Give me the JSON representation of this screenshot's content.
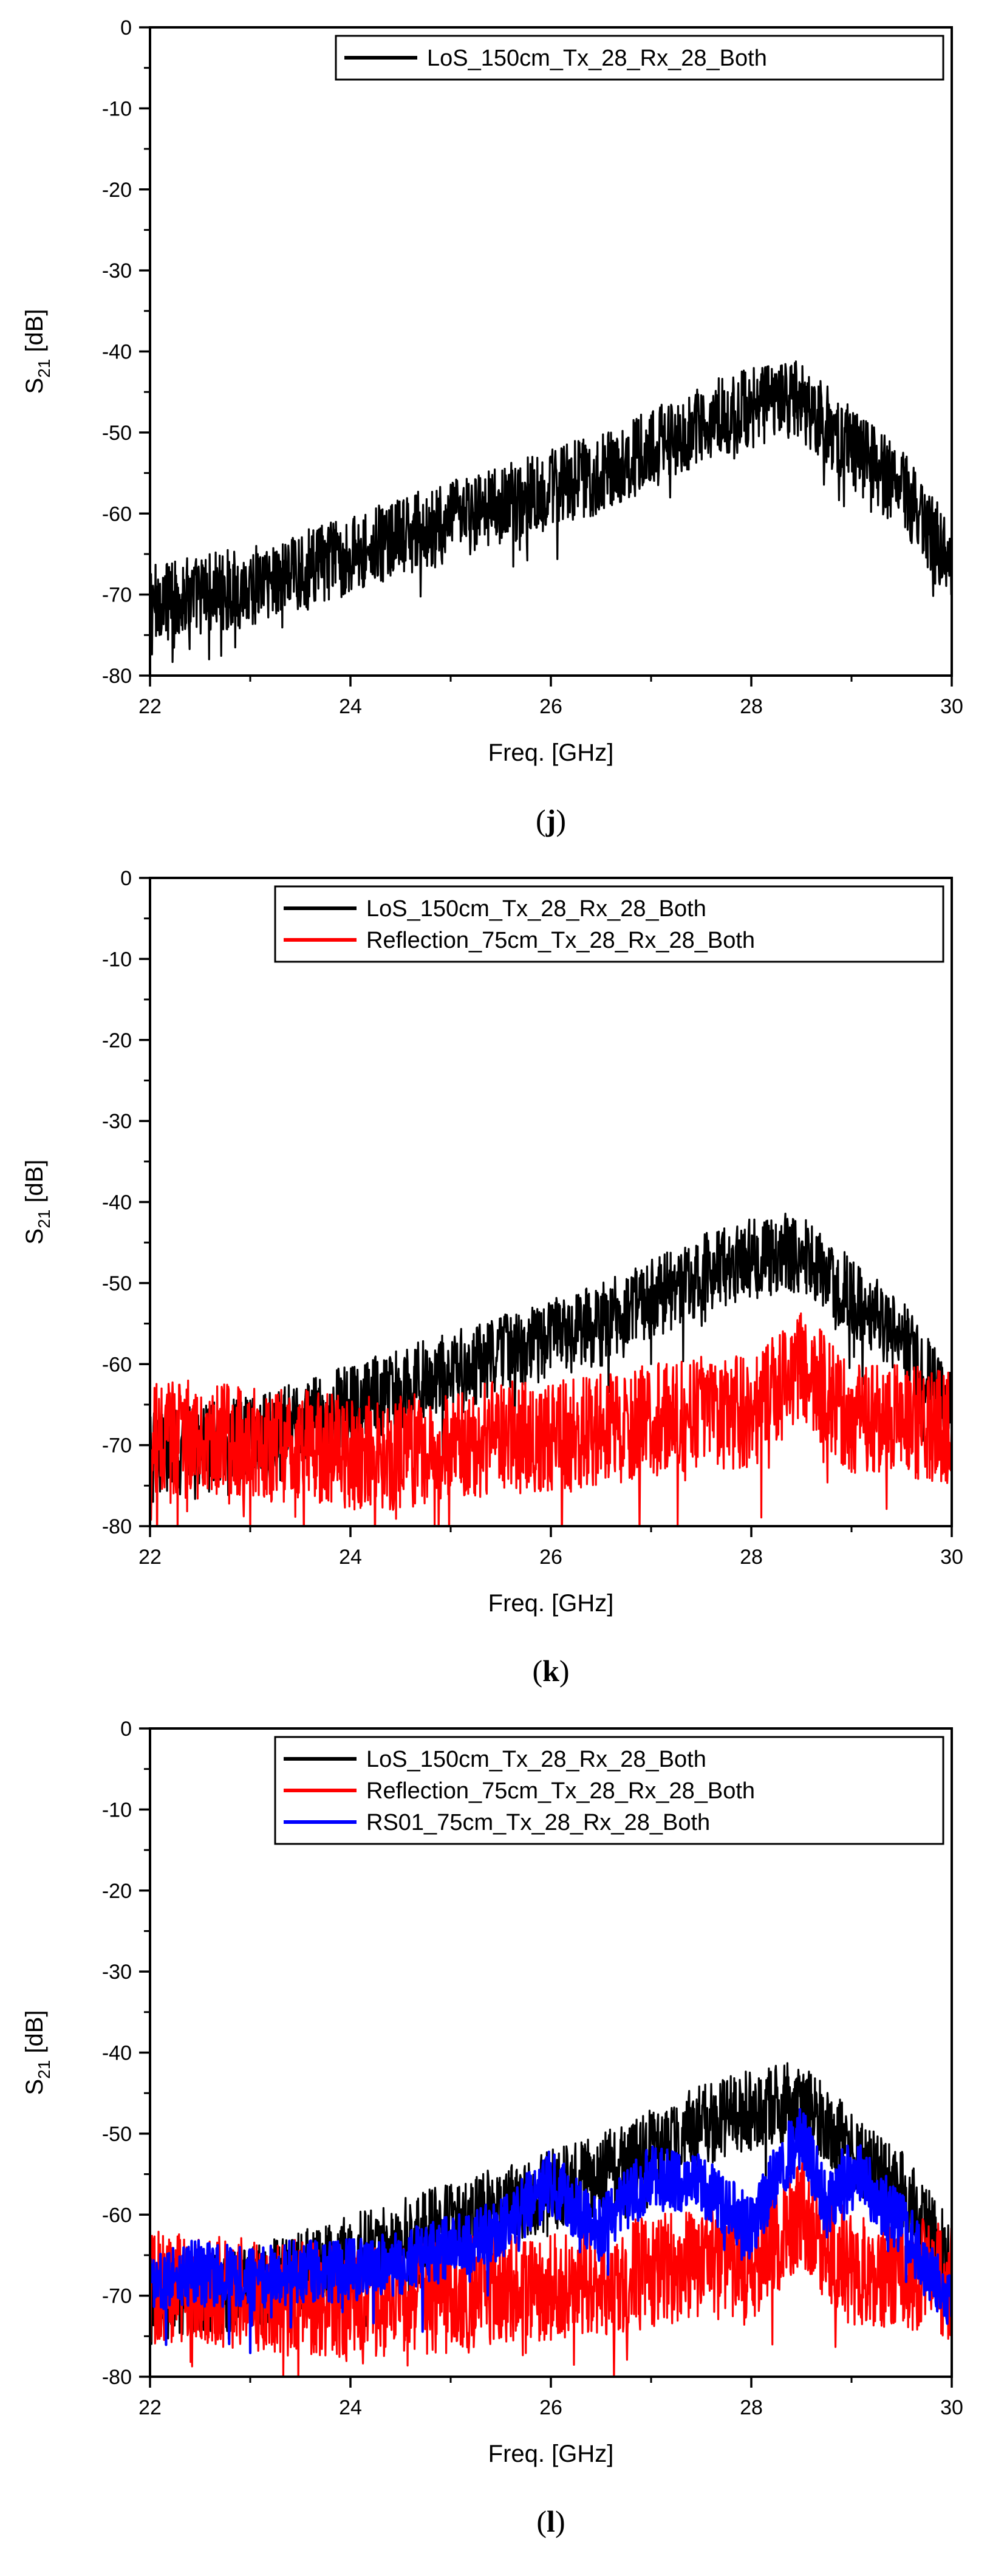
{
  "chart_data": [
    {
      "type": "line",
      "panel_label": "j",
      "xlabel": "Freq. [GHz]",
      "ylabel_main": "S",
      "ylabel_sub": "21",
      "ylabel_unit": " [dB]",
      "xlim": [
        22,
        30
      ],
      "ylim": [
        -80,
        0
      ],
      "xticks": [
        22,
        24,
        26,
        28,
        30
      ],
      "yticks": [
        0,
        -10,
        -20,
        -30,
        -40,
        -50,
        -60,
        -70,
        -80
      ],
      "grid": false,
      "legend_position": "top-right",
      "series": [
        {
          "name": "LoS_150cm_Tx_28_Rx_28_Both",
          "color": "#000000",
          "x": [
            22.0,
            22.5,
            23.0,
            23.5,
            24.0,
            24.5,
            25.0,
            25.5,
            26.0,
            26.5,
            27.0,
            27.5,
            28.0,
            28.5,
            29.0,
            29.5,
            30.0
          ],
          "y": [
            -71,
            -70,
            -69,
            -67,
            -65,
            -63,
            -61,
            -59,
            -57,
            -55,
            -52,
            -49,
            -47,
            -46,
            -52,
            -57,
            -66
          ],
          "noise": 5
        }
      ]
    },
    {
      "type": "line",
      "panel_label": "k",
      "xlabel": "Freq. [GHz]",
      "ylabel_main": "S",
      "ylabel_sub": "21",
      "ylabel_unit": " [dB]",
      "xlim": [
        22,
        30
      ],
      "ylim": [
        -80,
        0
      ],
      "xticks": [
        22,
        24,
        26,
        28,
        30
      ],
      "yticks": [
        0,
        -10,
        -20,
        -30,
        -40,
        -50,
        -60,
        -70,
        -80
      ],
      "grid": false,
      "legend_position": "top-right",
      "series": [
        {
          "name": "LoS_150cm_Tx_28_Rx_28_Both",
          "color": "#000000",
          "x": [
            22.0,
            22.5,
            23.0,
            23.5,
            24.0,
            24.5,
            25.0,
            25.5,
            26.0,
            26.5,
            27.0,
            27.5,
            28.0,
            28.5,
            29.0,
            29.5,
            30.0
          ],
          "y": [
            -71,
            -70,
            -69,
            -67,
            -65,
            -63,
            -61,
            -59,
            -57,
            -55,
            -52,
            -49,
            -47,
            -46,
            -52,
            -57,
            -66
          ],
          "noise": 5
        },
        {
          "name": "Reflection_75cm_Tx_28_Rx_28_Both",
          "color": "#ff0000",
          "x": [
            22.0,
            22.5,
            23.0,
            23.5,
            24.0,
            24.5,
            25.0,
            25.5,
            26.0,
            26.5,
            27.0,
            27.5,
            28.0,
            28.5,
            29.0,
            29.5,
            30.0
          ],
          "y": [
            -69,
            -69,
            -70,
            -70,
            -71,
            -71,
            -70,
            -69,
            -69,
            -68,
            -67,
            -66,
            -66,
            -60,
            -67,
            -67,
            -68
          ],
          "noise": 7
        }
      ]
    },
    {
      "type": "line",
      "panel_label": "l",
      "xlabel": "Freq. [GHz]",
      "ylabel_main": "S",
      "ylabel_sub": "21",
      "ylabel_unit": " [dB]",
      "xlim": [
        22,
        30
      ],
      "ylim": [
        -80,
        0
      ],
      "xticks": [
        22,
        24,
        26,
        28,
        30
      ],
      "yticks": [
        0,
        -10,
        -20,
        -30,
        -40,
        -50,
        -60,
        -70,
        -80
      ],
      "grid": false,
      "legend_position": "top-right",
      "series": [
        {
          "name": "LoS_150cm_Tx_28_Rx_28_Both",
          "color": "#000000",
          "x": [
            22.0,
            22.5,
            23.0,
            23.5,
            24.0,
            24.5,
            25.0,
            25.5,
            26.0,
            26.5,
            27.0,
            27.5,
            28.0,
            28.5,
            29.0,
            29.5,
            30.0
          ],
          "y": [
            -71,
            -70,
            -69,
            -67,
            -65,
            -63,
            -61,
            -59,
            -57,
            -55,
            -52,
            -49,
            -47,
            -46,
            -52,
            -57,
            -66
          ],
          "noise": 5
        },
        {
          "name": "Reflection_75cm_Tx_28_Rx_28_Both",
          "color": "#ff0000",
          "x": [
            22.0,
            22.5,
            23.0,
            23.5,
            24.0,
            24.5,
            25.0,
            25.5,
            26.0,
            26.5,
            27.0,
            27.5,
            28.0,
            28.5,
            29.0,
            29.5,
            30.0
          ],
          "y": [
            -69,
            -69,
            -70,
            -70,
            -71,
            -71,
            -70,
            -69,
            -69,
            -68,
            -67,
            -66,
            -66,
            -60,
            -67,
            -67,
            -68
          ],
          "noise": 7
        },
        {
          "name": "RS01_75cm_Tx_28_Rx_28_Both",
          "color": "#0000ff",
          "x": [
            22.0,
            22.5,
            23.0,
            23.5,
            24.0,
            24.5,
            25.0,
            25.5,
            26.0,
            26.5,
            27.0,
            27.5,
            28.0,
            28.25,
            28.5,
            28.75,
            29.0,
            29.25,
            29.5,
            30.0
          ],
          "y": [
            -68,
            -67,
            -68,
            -67,
            -67,
            -66,
            -64,
            -62,
            -56,
            -62,
            -55,
            -56,
            -62,
            -55,
            -50,
            -59,
            -54,
            -58,
            -61,
            -72
          ],
          "noise": 4
        }
      ]
    }
  ]
}
